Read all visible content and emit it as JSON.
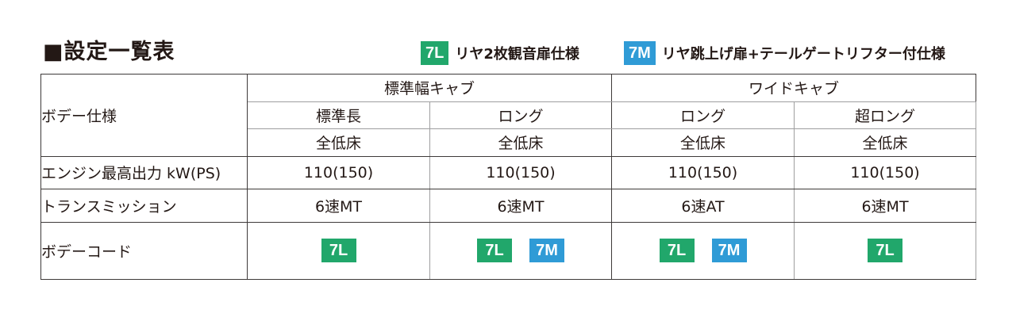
{
  "title": "■設定一覧表",
  "legend": [
    {
      "code": "7L",
      "color": "#21a76b",
      "text": "リヤ2枚観音扉仕様"
    },
    {
      "code": "7M",
      "color": "#2f9bd6",
      "text": "リヤ跳上げ扉+テールゲートリフター付仕様"
    }
  ],
  "table": {
    "row_labels": {
      "body_spec": "ボデー仕様",
      "engine": "エンジン最高出力 kW(PS)",
      "transmission": "トランスミッション",
      "body_code": "ボデーコード"
    },
    "cab_groups": [
      "標準幅キャブ",
      "ワイドキャブ"
    ],
    "columns": [
      {
        "length": "標準長",
        "floor": "全低床",
        "engine": "110(150)",
        "transmission": "6速MT",
        "codes": [
          "7L"
        ]
      },
      {
        "length": "ロング",
        "floor": "全低床",
        "engine": "110(150)",
        "transmission": "6速MT",
        "codes": [
          "7L",
          "7M"
        ]
      },
      {
        "length": "ロング",
        "floor": "全低床",
        "engine": "110(150)",
        "transmission": "6速AT",
        "codes": [
          "7L",
          "7M"
        ]
      },
      {
        "length": "超ロング",
        "floor": "全低床",
        "engine": "110(150)",
        "transmission": "6速MT",
        "codes": [
          "7L"
        ]
      }
    ]
  }
}
